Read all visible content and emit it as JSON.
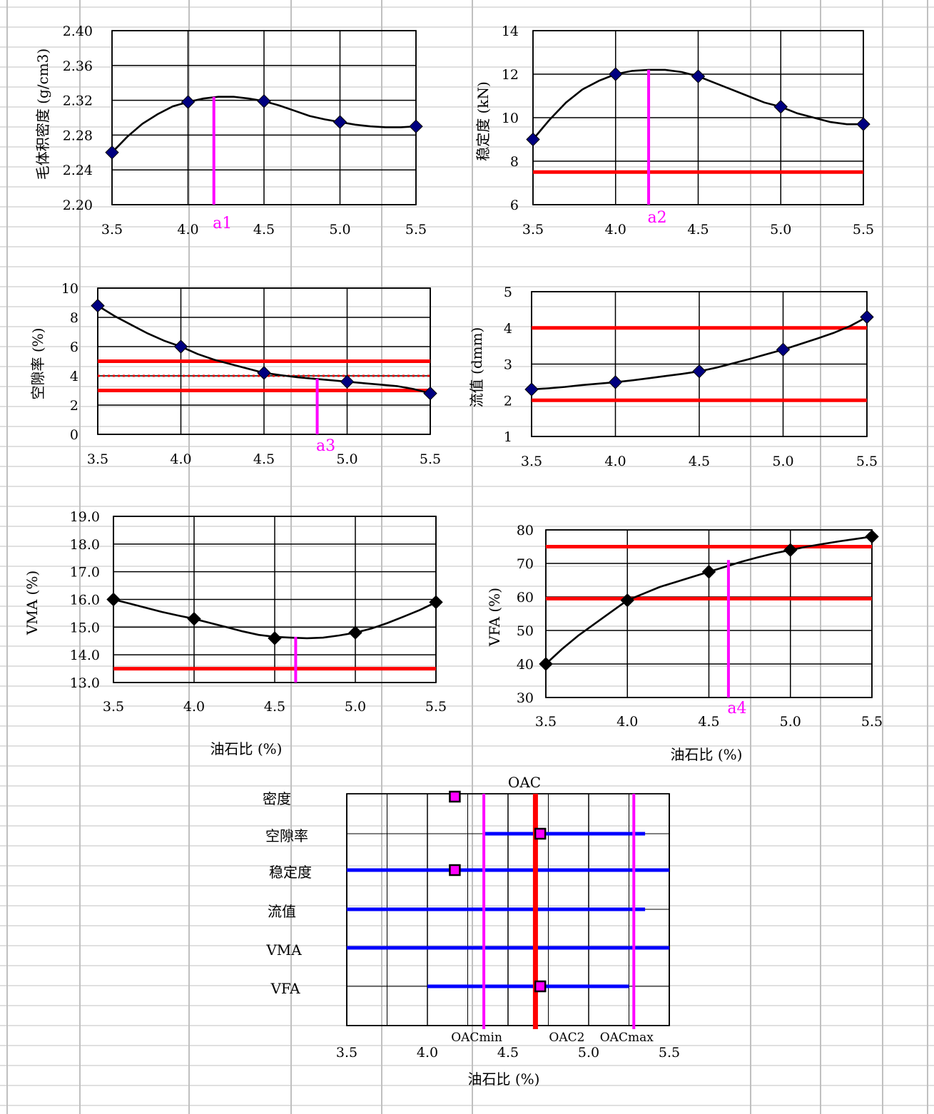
{
  "page_colors": {
    "gridline": "#c0c0c0",
    "axis": "#000000",
    "requirement": "#ff0000",
    "marker_line": "#ff00ff",
    "range_bar": "#0000ff",
    "oac_line": "#ff0000",
    "marker_dark": "#000080",
    "marker_black": "#000000"
  },
  "chart_data": [
    {
      "id": "density",
      "type": "line",
      "ylabel": "毛体积密度 (g/cm3)",
      "x": [
        3.5,
        4.0,
        4.5,
        5.0,
        5.5
      ],
      "y": [
        2.26,
        2.318,
        2.319,
        2.295,
        2.29
      ],
      "curve": [
        [
          3.5,
          2.26
        ],
        [
          3.6,
          2.278
        ],
        [
          3.7,
          2.293
        ],
        [
          3.8,
          2.304
        ],
        [
          3.9,
          2.313
        ],
        [
          4.0,
          2.318
        ],
        [
          4.1,
          2.322
        ],
        [
          4.2,
          2.324
        ],
        [
          4.3,
          2.324
        ],
        [
          4.4,
          2.322
        ],
        [
          4.5,
          2.319
        ],
        [
          4.6,
          2.314
        ],
        [
          4.7,
          2.308
        ],
        [
          4.8,
          2.302
        ],
        [
          4.9,
          2.298
        ],
        [
          5.0,
          2.295
        ],
        [
          5.1,
          2.292
        ],
        [
          5.2,
          2.29
        ],
        [
          5.3,
          2.289
        ],
        [
          5.4,
          2.289
        ],
        [
          5.5,
          2.29
        ]
      ],
      "xlim": [
        3.5,
        5.5
      ],
      "ylim": [
        2.2,
        2.4
      ],
      "xticks": [
        "3.5",
        "4.0",
        "4.5",
        "5.0",
        "5.5"
      ],
      "yticks": [
        "2.20",
        "2.24",
        "2.28",
        "2.32",
        "2.36",
        "2.40"
      ],
      "marker_color": "#000080",
      "hlines": [],
      "vlines": [
        {
          "x": 4.17,
          "label": "a1"
        }
      ]
    },
    {
      "id": "stability",
      "type": "line",
      "ylabel": "稳定度 (kN)",
      "x": [
        3.5,
        4.0,
        4.5,
        5.0,
        5.5
      ],
      "y": [
        9.0,
        12.0,
        11.9,
        10.5,
        9.7
      ],
      "curve": [
        [
          3.5,
          9.0
        ],
        [
          3.6,
          9.9
        ],
        [
          3.7,
          10.7
        ],
        [
          3.8,
          11.3
        ],
        [
          3.9,
          11.7
        ],
        [
          4.0,
          12.0
        ],
        [
          4.1,
          12.15
        ],
        [
          4.2,
          12.2
        ],
        [
          4.3,
          12.2
        ],
        [
          4.4,
          12.1
        ],
        [
          4.5,
          11.9
        ],
        [
          4.6,
          11.6
        ],
        [
          4.7,
          11.3
        ],
        [
          4.8,
          11.0
        ],
        [
          4.9,
          10.7
        ],
        [
          5.0,
          10.5
        ],
        [
          5.1,
          10.2
        ],
        [
          5.2,
          10.0
        ],
        [
          5.3,
          9.8
        ],
        [
          5.4,
          9.7
        ],
        [
          5.5,
          9.7
        ]
      ],
      "xlim": [
        3.5,
        5.5
      ],
      "ylim": [
        6,
        14
      ],
      "xticks": [
        "3.5",
        "4.0",
        "4.5",
        "5.0",
        "5.5"
      ],
      "yticks": [
        "6",
        "8",
        "10",
        "12",
        "14"
      ],
      "marker_color": "#000080",
      "hlines": [
        {
          "y": 7.5
        }
      ],
      "vlines": [
        {
          "x": 4.2,
          "label": "a2"
        }
      ]
    },
    {
      "id": "air_voids",
      "type": "line",
      "ylabel": "空隙率 (%)",
      "x": [
        3.5,
        4.0,
        4.5,
        5.0,
        5.5
      ],
      "y": [
        8.8,
        6.0,
        4.2,
        3.6,
        2.8
      ],
      "curve": [
        [
          3.5,
          8.8
        ],
        [
          3.6,
          8.1
        ],
        [
          3.7,
          7.5
        ],
        [
          3.8,
          6.9
        ],
        [
          3.9,
          6.4
        ],
        [
          4.0,
          6.0
        ],
        [
          4.1,
          5.5
        ],
        [
          4.2,
          5.1
        ],
        [
          4.3,
          4.8
        ],
        [
          4.4,
          4.5
        ],
        [
          4.5,
          4.2
        ],
        [
          4.6,
          4.05
        ],
        [
          4.7,
          3.9
        ],
        [
          4.8,
          3.8
        ],
        [
          4.9,
          3.7
        ],
        [
          5.0,
          3.6
        ],
        [
          5.1,
          3.5
        ],
        [
          5.2,
          3.4
        ],
        [
          5.3,
          3.3
        ],
        [
          5.4,
          3.1
        ],
        [
          5.5,
          2.8
        ]
      ],
      "xlim": [
        3.5,
        5.5
      ],
      "ylim": [
        0,
        10
      ],
      "xticks": [
        "3.5",
        "4.0",
        "4.5",
        "5.0",
        "5.5"
      ],
      "yticks": [
        "0",
        "2",
        "4",
        "6",
        "8",
        "10"
      ],
      "marker_color": "#000080",
      "hlines": [
        {
          "y": 5.0
        },
        {
          "y": 3.0
        },
        {
          "y": 4.0,
          "dotted": true
        }
      ],
      "vlines": [
        {
          "x": 4.82,
          "label": "a3"
        }
      ]
    },
    {
      "id": "flow",
      "type": "line",
      "ylabel": "流值 (dmm)",
      "x": [
        3.5,
        4.0,
        4.5,
        5.0,
        5.5
      ],
      "y": [
        2.3,
        2.5,
        2.8,
        3.4,
        4.3
      ],
      "curve": [
        [
          3.5,
          2.3
        ],
        [
          3.6,
          2.33
        ],
        [
          3.7,
          2.37
        ],
        [
          3.8,
          2.42
        ],
        [
          3.9,
          2.46
        ],
        [
          4.0,
          2.5
        ],
        [
          4.1,
          2.55
        ],
        [
          4.2,
          2.61
        ],
        [
          4.3,
          2.67
        ],
        [
          4.4,
          2.73
        ],
        [
          4.5,
          2.8
        ],
        [
          4.6,
          2.9
        ],
        [
          4.7,
          3.02
        ],
        [
          4.8,
          3.14
        ],
        [
          4.9,
          3.27
        ],
        [
          5.0,
          3.4
        ],
        [
          5.1,
          3.55
        ],
        [
          5.2,
          3.7
        ],
        [
          5.3,
          3.86
        ],
        [
          5.4,
          4.05
        ],
        [
          5.5,
          4.3
        ]
      ],
      "xlim": [
        3.5,
        5.5
      ],
      "ylim": [
        1,
        5
      ],
      "xticks": [
        "3.5",
        "4.0",
        "4.5",
        "5.0",
        "5.5"
      ],
      "yticks": [
        "1",
        "2",
        "3",
        "4",
        "5"
      ],
      "marker_color": "#000080",
      "hlines": [
        {
          "y": 4.0
        },
        {
          "y": 2.0
        }
      ],
      "vlines": []
    },
    {
      "id": "vma",
      "type": "line",
      "ylabel": "VMA (%)",
      "xlabel": "油石比 (%)",
      "x": [
        3.5,
        4.0,
        4.5,
        5.0,
        5.5
      ],
      "y": [
        16.0,
        15.3,
        14.6,
        14.8,
        15.9
      ],
      "curve": [
        [
          3.5,
          16.0
        ],
        [
          3.6,
          15.85
        ],
        [
          3.7,
          15.7
        ],
        [
          3.8,
          15.55
        ],
        [
          3.9,
          15.42
        ],
        [
          4.0,
          15.3
        ],
        [
          4.1,
          15.15
        ],
        [
          4.2,
          15.0
        ],
        [
          4.3,
          14.85
        ],
        [
          4.4,
          14.72
        ],
        [
          4.5,
          14.65
        ],
        [
          4.6,
          14.62
        ],
        [
          4.7,
          14.6
        ],
        [
          4.8,
          14.62
        ],
        [
          4.9,
          14.7
        ],
        [
          5.0,
          14.8
        ],
        [
          5.1,
          14.95
        ],
        [
          5.2,
          15.15
        ],
        [
          5.3,
          15.38
        ],
        [
          5.4,
          15.62
        ],
        [
          5.5,
          15.9
        ]
      ],
      "xlim": [
        3.5,
        5.5
      ],
      "ylim": [
        13.0,
        19.0
      ],
      "xticks": [
        "3.5",
        "4.0",
        "4.5",
        "5.0",
        "5.5"
      ],
      "yticks": [
        "13.0",
        "14.0",
        "15.0",
        "16.0",
        "17.0",
        "18.0",
        "19.0"
      ],
      "marker_color": "#000000",
      "hlines": [
        {
          "y": 13.5
        }
      ],
      "vlines": [
        {
          "x": 4.63,
          "top": 14.65,
          "label": ""
        }
      ]
    },
    {
      "id": "vfa",
      "type": "line",
      "ylabel": "VFA (%)",
      "xlabel": "油石比 (%)",
      "x": [
        3.5,
        4.0,
        4.5,
        5.0,
        5.5
      ],
      "y": [
        40,
        59,
        67.5,
        74,
        78
      ],
      "curve": [
        [
          3.5,
          40
        ],
        [
          3.6,
          44.5
        ],
        [
          3.7,
          48.5
        ],
        [
          3.8,
          52
        ],
        [
          3.9,
          55.5
        ],
        [
          4.0,
          59
        ],
        [
          4.1,
          61
        ],
        [
          4.2,
          63
        ],
        [
          4.3,
          64.5
        ],
        [
          4.4,
          66
        ],
        [
          4.5,
          67.5
        ],
        [
          4.6,
          69
        ],
        [
          4.7,
          70.5
        ],
        [
          4.8,
          71.8
        ],
        [
          4.9,
          73
        ],
        [
          5.0,
          74
        ],
        [
          5.1,
          75
        ],
        [
          5.2,
          75.8
        ],
        [
          5.3,
          76.6
        ],
        [
          5.4,
          77.3
        ],
        [
          5.5,
          78
        ]
      ],
      "xlim": [
        3.5,
        5.5
      ],
      "ylim": [
        30,
        80
      ],
      "xticks": [
        "3.5",
        "4.0",
        "4.5",
        "5.0",
        "5.5"
      ],
      "yticks": [
        "30",
        "40",
        "50",
        "60",
        "70",
        "80"
      ],
      "marker_color": "#000000",
      "hlines": [
        {
          "y": 75
        },
        {
          "y": 59.5
        }
      ],
      "vlines": [
        {
          "x": 4.62,
          "top": 71,
          "label": "a4"
        }
      ]
    },
    {
      "id": "oac",
      "type": "range",
      "title": "OAC",
      "xlabel": "油石比 (%)",
      "xlim": [
        3.5,
        5.5
      ],
      "xticks": [
        "3.5",
        "4.0",
        "4.5",
        "5.0",
        "5.5"
      ],
      "rows": [
        {
          "label": "密度",
          "range": null,
          "point": 4.17
        },
        {
          "label": "空隙率",
          "range": [
            4.35,
            5.35
          ],
          "point": 4.7
        },
        {
          "label": "稳定度",
          "range": [
            3.5,
            5.5
          ],
          "point": 4.17
        },
        {
          "label": "流值",
          "range": [
            3.5,
            5.35
          ],
          "point": null
        },
        {
          "label": "VMA",
          "range": [
            3.5,
            5.5
          ],
          "point": null
        },
        {
          "label": "VFA",
          "range": [
            4.0,
            5.25
          ],
          "point": 4.7
        }
      ],
      "vlines": [
        {
          "x": 4.35,
          "label": "OACmin"
        },
        {
          "x": 5.28,
          "label": "OACmax"
        },
        {
          "x": 4.67,
          "label": "OAC2",
          "bold": true
        }
      ]
    }
  ]
}
